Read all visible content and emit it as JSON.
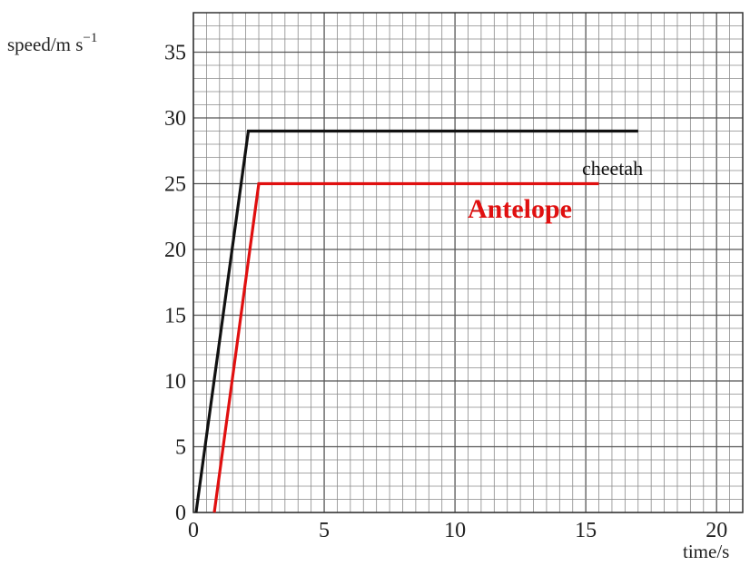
{
  "chart_data": {
    "type": "line",
    "xlabel": "time/s",
    "ylabel": "speed/m s",
    "ylabel_superscript": "−1",
    "xlim": [
      0,
      21
    ],
    "ylim": [
      0,
      38
    ],
    "x_ticks": [
      "0",
      "5",
      "10",
      "15",
      "20"
    ],
    "y_ticks": [
      "0",
      "5",
      "10",
      "15",
      "20",
      "25",
      "30",
      "35"
    ],
    "grid": true,
    "series": [
      {
        "name": "cheetah",
        "color": "#111111",
        "points": [
          [
            0.1,
            0
          ],
          [
            2.1,
            29
          ],
          [
            17,
            29
          ]
        ]
      },
      {
        "name": "Antelope",
        "color": "#e01010",
        "points": [
          [
            0.8,
            0
          ],
          [
            2.5,
            25
          ],
          [
            15.5,
            25
          ]
        ]
      }
    ]
  }
}
